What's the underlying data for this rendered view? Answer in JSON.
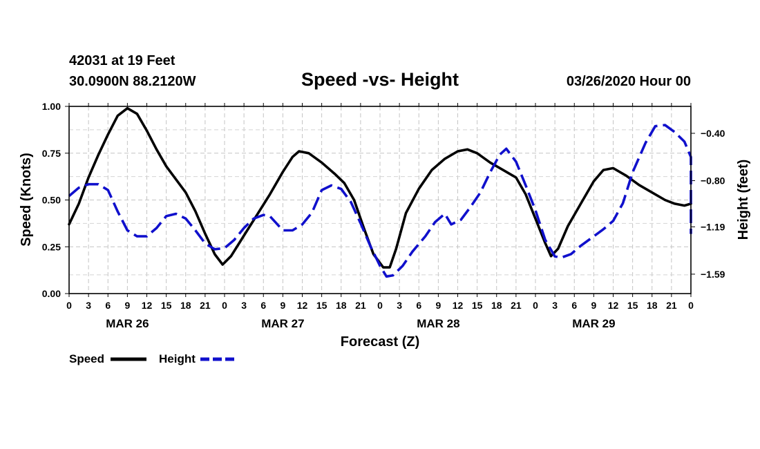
{
  "header": {
    "station": "42031 at 19 Feet",
    "location": "30.0900N 88.2120W",
    "title": "Speed -vs- Height",
    "datetime": "03/26/2020 Hour 00"
  },
  "chart_data": {
    "type": "line",
    "title": "Speed -vs- Height",
    "xlabel": "Forecast (Z)",
    "ylabel_left": "Speed (Knots)",
    "ylabel_right": "Height (feet)",
    "x_range_hours": [
      0,
      96
    ],
    "left_axis": {
      "range": [
        0,
        1
      ],
      "ticks": [
        "0.00",
        "0.25",
        "0.50",
        "0.75",
        "1.00"
      ],
      "tick_values": [
        0,
        0.25,
        0.5,
        0.75,
        1.0
      ]
    },
    "right_axis": {
      "range": [
        -1.754,
        -0.1725
      ],
      "ticks": [
        "-0.40",
        "-0.80",
        "-1.19",
        "-1.59"
      ],
      "tick_values": [
        -0.4,
        -0.8,
        -1.19,
        -1.59
      ]
    },
    "x_tick_labels": [
      "0",
      "3",
      "6",
      "9",
      "12",
      "15",
      "18",
      "21",
      "0",
      "3",
      "6",
      "9",
      "12",
      "15",
      "18",
      "21",
      "0",
      "3",
      "6",
      "9",
      "12",
      "15",
      "18",
      "21",
      "0",
      "3",
      "6",
      "9",
      "12",
      "15",
      "18",
      "21",
      "0"
    ],
    "day_labels": [
      {
        "label": "MAR 26",
        "hour": 9
      },
      {
        "label": "MAR 27",
        "hour": 33
      },
      {
        "label": "MAR 28",
        "hour": 57
      },
      {
        "label": "MAR 29",
        "hour": 81
      }
    ],
    "grid": true,
    "legend_position": "bottom-left",
    "series": [
      {
        "name": "Speed",
        "axis": "left",
        "color": "#000000",
        "dash": "solid",
        "points": [
          [
            0,
            0.37
          ],
          [
            1.5,
            0.48
          ],
          [
            3,
            0.62
          ],
          [
            4.5,
            0.74
          ],
          [
            6,
            0.85
          ],
          [
            7.5,
            0.95
          ],
          [
            9,
            0.99
          ],
          [
            10.5,
            0.96
          ],
          [
            12,
            0.87
          ],
          [
            13.5,
            0.77
          ],
          [
            15,
            0.68
          ],
          [
            16.5,
            0.61
          ],
          [
            18,
            0.54
          ],
          [
            19.5,
            0.44
          ],
          [
            21,
            0.32
          ],
          [
            22.5,
            0.21
          ],
          [
            23.7,
            0.155
          ],
          [
            25,
            0.2
          ],
          [
            27,
            0.31
          ],
          [
            29,
            0.42
          ],
          [
            31,
            0.53
          ],
          [
            33,
            0.65
          ],
          [
            34.5,
            0.73
          ],
          [
            35.5,
            0.76
          ],
          [
            37,
            0.75
          ],
          [
            39,
            0.7
          ],
          [
            41,
            0.64
          ],
          [
            42.5,
            0.59
          ],
          [
            44,
            0.5
          ],
          [
            45.5,
            0.35
          ],
          [
            47,
            0.21
          ],
          [
            48.5,
            0.14
          ],
          [
            49.5,
            0.14
          ],
          [
            50.5,
            0.24
          ],
          [
            52,
            0.43
          ],
          [
            54,
            0.56
          ],
          [
            56,
            0.66
          ],
          [
            58,
            0.72
          ],
          [
            60,
            0.76
          ],
          [
            61.5,
            0.77
          ],
          [
            63,
            0.75
          ],
          [
            65,
            0.7
          ],
          [
            67,
            0.66
          ],
          [
            69,
            0.62
          ],
          [
            70.5,
            0.53
          ],
          [
            72,
            0.4
          ],
          [
            73.5,
            0.27
          ],
          [
            74.4,
            0.2
          ],
          [
            75.5,
            0.24
          ],
          [
            77,
            0.36
          ],
          [
            79,
            0.48
          ],
          [
            81,
            0.6
          ],
          [
            82.5,
            0.66
          ],
          [
            84,
            0.67
          ],
          [
            86,
            0.63
          ],
          [
            88,
            0.58
          ],
          [
            90,
            0.54
          ],
          [
            92,
            0.5
          ],
          [
            93.5,
            0.48
          ],
          [
            95,
            0.47
          ],
          [
            96,
            0.48
          ]
        ]
      },
      {
        "name": "Height",
        "axis": "right",
        "color": "#1010cc",
        "dash": "dashed",
        "points": [
          [
            0,
            -0.93
          ],
          [
            1.5,
            -0.86
          ],
          [
            3,
            -0.83
          ],
          [
            4.5,
            -0.83
          ],
          [
            6,
            -0.88
          ],
          [
            7.5,
            -1.06
          ],
          [
            9,
            -1.22
          ],
          [
            10.5,
            -1.27
          ],
          [
            12,
            -1.27
          ],
          [
            13.5,
            -1.2
          ],
          [
            15,
            -1.1
          ],
          [
            16.5,
            -1.08
          ],
          [
            18,
            -1.12
          ],
          [
            19.5,
            -1.22
          ],
          [
            21,
            -1.33
          ],
          [
            22.5,
            -1.38
          ],
          [
            24,
            -1.37
          ],
          [
            25.5,
            -1.3
          ],
          [
            27,
            -1.2
          ],
          [
            28.5,
            -1.12
          ],
          [
            30,
            -1.09
          ],
          [
            31,
            -1.1
          ],
          [
            32,
            -1.16
          ],
          [
            33,
            -1.22
          ],
          [
            34.5,
            -1.22
          ],
          [
            36,
            -1.17
          ],
          [
            37.5,
            -1.07
          ],
          [
            39,
            -0.88
          ],
          [
            40.5,
            -0.84
          ],
          [
            42,
            -0.87
          ],
          [
            43.5,
            -0.98
          ],
          [
            45,
            -1.16
          ],
          [
            46.5,
            -1.35
          ],
          [
            48,
            -1.52
          ],
          [
            49,
            -1.61
          ],
          [
            50,
            -1.6
          ],
          [
            51.5,
            -1.52
          ],
          [
            53,
            -1.4
          ],
          [
            55,
            -1.27
          ],
          [
            56.5,
            -1.15
          ],
          [
            58,
            -1.08
          ],
          [
            59,
            -1.17
          ],
          [
            60.5,
            -1.13
          ],
          [
            62,
            -1.02
          ],
          [
            63.5,
            -0.9
          ],
          [
            65,
            -0.73
          ],
          [
            66.5,
            -0.58
          ],
          [
            67.5,
            -0.53
          ],
          [
            69,
            -0.64
          ],
          [
            70.5,
            -0.84
          ],
          [
            72,
            -1.05
          ],
          [
            73.5,
            -1.3
          ],
          [
            75,
            -1.44
          ],
          [
            76,
            -1.45
          ],
          [
            77.5,
            -1.42
          ],
          [
            79,
            -1.35
          ],
          [
            81,
            -1.27
          ],
          [
            82.5,
            -1.21
          ],
          [
            84,
            -1.14
          ],
          [
            85.5,
            -0.99
          ],
          [
            87,
            -0.73
          ],
          [
            89,
            -0.48
          ],
          [
            90.5,
            -0.34
          ],
          [
            92,
            -0.33
          ],
          [
            93.5,
            -0.39
          ],
          [
            95,
            -0.47
          ],
          [
            96.5,
            -0.6
          ],
          [
            98,
            -0.85
          ],
          [
            99,
            -1.1
          ],
          [
            99.5,
            -1.25
          ]
        ]
      }
    ]
  }
}
